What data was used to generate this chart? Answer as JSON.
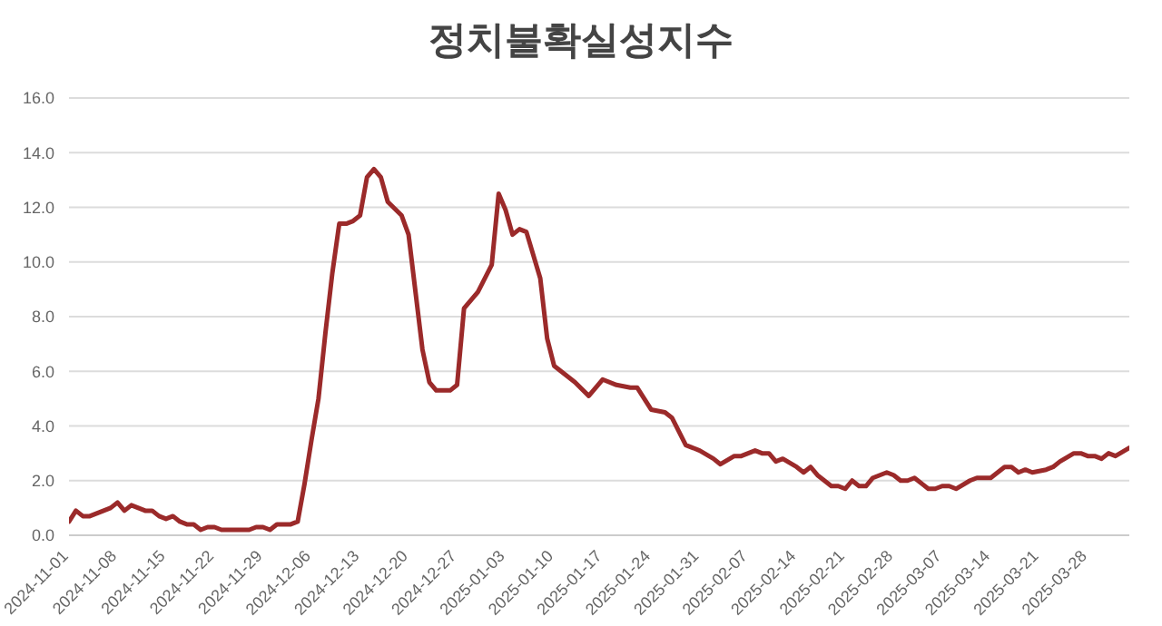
{
  "chart_data": {
    "type": "line",
    "title": "정치불확실성지수",
    "x": [
      "2024-11-01",
      "2024-11-02",
      "2024-11-03",
      "2024-11-04",
      "2024-11-05",
      "2024-11-06",
      "2024-11-07",
      "2024-11-08",
      "2024-11-09",
      "2024-11-10",
      "2024-11-11",
      "2024-11-12",
      "2024-11-13",
      "2024-11-14",
      "2024-11-15",
      "2024-11-16",
      "2024-11-17",
      "2024-11-18",
      "2024-11-19",
      "2024-11-20",
      "2024-11-21",
      "2024-11-22",
      "2024-11-23",
      "2024-11-25",
      "2024-11-27",
      "2024-11-28",
      "2024-11-29",
      "2024-11-30",
      "2024-12-01",
      "2024-12-02",
      "2024-12-03",
      "2024-12-04",
      "2024-12-05",
      "2024-12-06",
      "2024-12-07",
      "2024-12-08",
      "2024-12-09",
      "2024-12-10",
      "2024-12-11",
      "2024-12-12",
      "2024-12-13",
      "2024-12-14",
      "2024-12-15",
      "2024-12-16",
      "2024-12-17",
      "2024-12-19",
      "2024-12-20",
      "2024-12-22",
      "2024-12-23",
      "2024-12-24",
      "2024-12-26",
      "2024-12-27",
      "2024-12-28",
      "2024-12-30",
      "2025-01-01",
      "2025-01-02",
      "2025-01-03",
      "2025-01-04",
      "2025-01-05",
      "2025-01-06",
      "2025-01-08",
      "2025-01-09",
      "2025-01-10",
      "2025-01-13",
      "2025-01-15",
      "2025-01-17",
      "2025-01-19",
      "2025-01-21",
      "2025-01-22",
      "2025-01-24",
      "2025-01-26",
      "2025-01-27",
      "2025-01-29",
      "2025-01-31",
      "2025-02-02",
      "2025-02-03",
      "2025-02-05",
      "2025-02-06",
      "2025-02-08",
      "2025-02-09",
      "2025-02-10",
      "2025-02-11",
      "2025-02-12",
      "2025-02-14",
      "2025-02-15",
      "2025-02-16",
      "2025-02-17",
      "2025-02-19",
      "2025-02-20",
      "2025-02-21",
      "2025-02-22",
      "2025-02-23",
      "2025-02-24",
      "2025-02-25",
      "2025-02-27",
      "2025-02-28",
      "2025-03-01",
      "2025-03-02",
      "2025-03-03",
      "2025-03-05",
      "2025-03-06",
      "2025-03-07",
      "2025-03-08",
      "2025-03-09",
      "2025-03-11",
      "2025-03-12",
      "2025-03-13",
      "2025-03-14",
      "2025-03-16",
      "2025-03-17",
      "2025-03-18",
      "2025-03-19",
      "2025-03-20",
      "2025-03-22",
      "2025-03-23",
      "2025-03-24",
      "2025-03-26",
      "2025-03-27",
      "2025-03-28",
      "2025-03-29",
      "2025-03-30",
      "2025-03-31",
      "2025-04-01",
      "2025-04-03"
    ],
    "series": [
      {
        "color": "#9b2a2a",
        "values": [
          0.5,
          0.9,
          0.7,
          0.7,
          0.8,
          0.9,
          1.0,
          1.2,
          0.9,
          1.1,
          1.0,
          0.9,
          0.9,
          0.7,
          0.6,
          0.7,
          0.5,
          0.4,
          0.4,
          0.2,
          0.3,
          0.3,
          0.2,
          0.2,
          0.2,
          0.3,
          0.3,
          0.2,
          0.4,
          0.4,
          0.4,
          0.5,
          1.9,
          3.5,
          5.0,
          7.4,
          9.6,
          11.4,
          11.4,
          11.5,
          11.7,
          13.1,
          13.4,
          13.1,
          12.2,
          11.7,
          11.0,
          6.8,
          5.6,
          5.3,
          5.3,
          5.5,
          8.3,
          8.9,
          9.9,
          12.5,
          11.9,
          11.0,
          11.2,
          11.1,
          9.4,
          7.2,
          6.2,
          5.6,
          5.1,
          5.7,
          5.5,
          5.4,
          5.4,
          4.6,
          4.5,
          4.3,
          3.3,
          3.1,
          2.8,
          2.6,
          2.9,
          2.9,
          3.1,
          3.0,
          3.0,
          2.7,
          2.8,
          2.5,
          2.3,
          2.5,
          2.2,
          1.8,
          1.8,
          1.7,
          2.0,
          1.8,
          1.8,
          2.1,
          2.3,
          2.2,
          2.0,
          2.0,
          2.1,
          1.7,
          1.7,
          1.8,
          1.8,
          1.7,
          2.0,
          2.1,
          2.1,
          2.1,
          2.5,
          2.5,
          2.3,
          2.4,
          2.3,
          2.4,
          2.5,
          2.7,
          3.0,
          3.0,
          2.9,
          2.9,
          2.8,
          3.0,
          2.9,
          3.2
        ]
      }
    ],
    "xlim": [
      "2024-11-01",
      "2025-04-03"
    ],
    "xticks": [
      "2024-11-01",
      "2024-11-08",
      "2024-11-15",
      "2024-11-22",
      "2024-11-29",
      "2024-12-06",
      "2024-12-13",
      "2024-12-20",
      "2024-12-27",
      "2025-01-03",
      "2025-01-10",
      "2025-01-17",
      "2025-01-24",
      "2025-01-31",
      "2025-02-07",
      "2025-02-14",
      "2025-02-21",
      "2025-02-28",
      "2025-03-07",
      "2025-03-14",
      "2025-03-21",
      "2025-03-28"
    ],
    "ylim": [
      0,
      16
    ],
    "yticks": [
      {
        "value": 0,
        "label": "0.0"
      },
      {
        "value": 2,
        "label": "2.0"
      },
      {
        "value": 4,
        "label": "4.0"
      },
      {
        "value": 6,
        "label": "6.0"
      },
      {
        "value": 8,
        "label": "8.0"
      },
      {
        "value": 10,
        "label": "10.0"
      },
      {
        "value": 12,
        "label": "12.0"
      },
      {
        "value": 14,
        "label": "14.0"
      },
      {
        "value": 16,
        "label": "16.0"
      }
    ],
    "grid": "y",
    "marker": "none",
    "line_style": "solid"
  }
}
